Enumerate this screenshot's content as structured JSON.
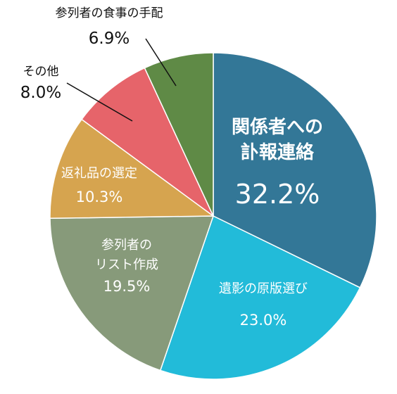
{
  "chart_data": {
    "type": "pie",
    "slices": [
      {
        "label_lines": [
          "関係者への",
          "訃報連絡"
        ],
        "percent_label": "32.2%",
        "value": 32.2,
        "color": "#337797"
      },
      {
        "label_lines": [
          "遺影の原版選び"
        ],
        "percent_label": "23.0%",
        "value": 23.0,
        "color": "#22bbd9"
      },
      {
        "label_lines": [
          "参列者の",
          "リスト作成"
        ],
        "percent_label": "19.5%",
        "value": 19.5,
        "color": "#879a7a"
      },
      {
        "label_lines": [
          "返礼品の選定"
        ],
        "percent_label": "10.3%",
        "value": 10.3,
        "color": "#d6a44f"
      },
      {
        "label_lines": [
          "その他"
        ],
        "percent_label": "8.0%",
        "value": 8.0,
        "color": "#e6646a"
      },
      {
        "label_lines": [
          "参列者の食事の手配"
        ],
        "percent_label": "6.9%",
        "value": 6.9,
        "color": "#5f8a46"
      }
    ]
  }
}
